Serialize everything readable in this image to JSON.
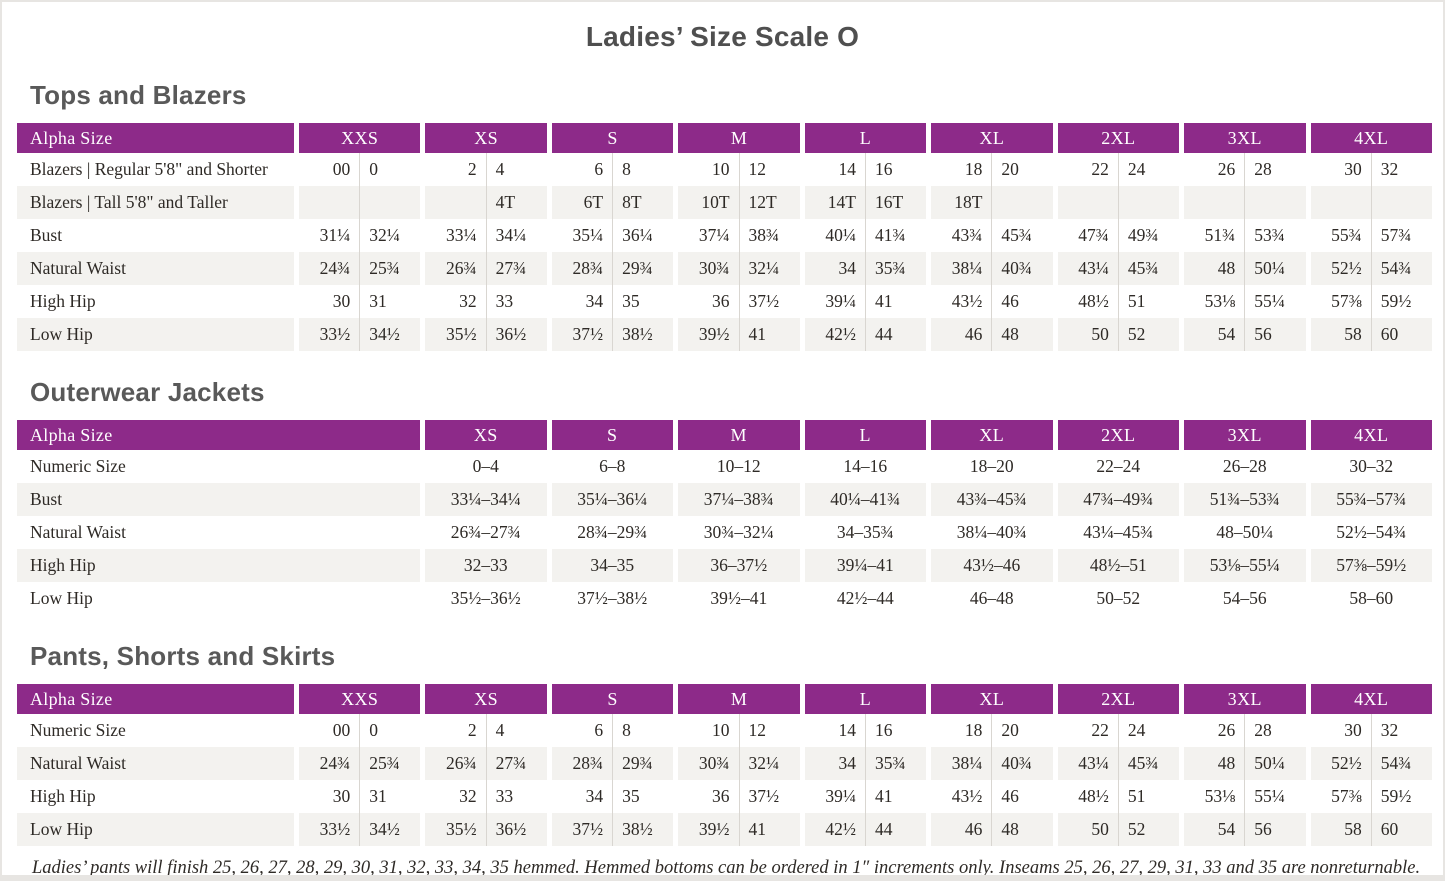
{
  "page": {
    "title": "Ladies’ Size Scale O",
    "footnote": "Ladies’ pants will finish 25, 26, 27, 28, 29, 30, 31, 32, 33, 34, 35 hemmed. Hemmed bottoms can be ordered in 1″ increments only. Inseams 25, 26, 27, 29, 31, 33 and 35 are nonreturnable."
  },
  "colors": {
    "accent": "#8d2a89",
    "stripe": "#f3f2ef",
    "heading_gray": "#595959"
  },
  "tables": [
    {
      "id": "tops-and-blazers",
      "section_title": "Tops and Blazers",
      "header_label": "Alpha Size",
      "columns_per_size": 2,
      "sizes": [
        "XXS",
        "XS",
        "S",
        "M",
        "L",
        "XL",
        "2XL",
        "3XL",
        "4XL"
      ],
      "rows": [
        {
          "label": "Blazers  |  Regular 5'8\" and Shorter",
          "values": [
            "00",
            "0",
            "2",
            "4",
            "6",
            "8",
            "10",
            "12",
            "14",
            "16",
            "18",
            "20",
            "22",
            "24",
            "26",
            "28",
            "30",
            "32"
          ]
        },
        {
          "label": "Blazers  |  Tall 5'8\" and Taller",
          "values": [
            "",
            "",
            "",
            "4T",
            "6T",
            "8T",
            "10T",
            "12T",
            "14T",
            "16T",
            "18T",
            "",
            "",
            "",
            "",
            "",
            "",
            ""
          ]
        },
        {
          "label": "Bust",
          "values": [
            "31¼",
            "32¼",
            "33¼",
            "34¼",
            "35¼",
            "36¼",
            "37¼",
            "38¾",
            "40¼",
            "41¾",
            "43¾",
            "45¾",
            "47¾",
            "49¾",
            "51¾",
            "53¾",
            "55¾",
            "57¾"
          ]
        },
        {
          "label": "Natural Waist",
          "values": [
            "24¾",
            "25¾",
            "26¾",
            "27¾",
            "28¾",
            "29¾",
            "30¾",
            "32¼",
            "34",
            "35¾",
            "38¼",
            "40¾",
            "43¼",
            "45¾",
            "48",
            "50¼",
            "52½",
            "54¾"
          ]
        },
        {
          "label": "High Hip",
          "values": [
            "30",
            "31",
            "32",
            "33",
            "34",
            "35",
            "36",
            "37½",
            "39¼",
            "41",
            "43½",
            "46",
            "48½",
            "51",
            "53⅛",
            "55¼",
            "57⅜",
            "59½"
          ]
        },
        {
          "label": "Low Hip",
          "values": [
            "33½",
            "34½",
            "35½",
            "36½",
            "37½",
            "38½",
            "39½",
            "41",
            "42½",
            "44",
            "46",
            "48",
            "50",
            "52",
            "54",
            "56",
            "58",
            "60"
          ]
        }
      ]
    },
    {
      "id": "outerwear-jackets",
      "section_title": "Outerwear Jackets",
      "header_label": "Alpha Size",
      "columns_per_size": 1,
      "sizes": [
        "XS",
        "S",
        "M",
        "L",
        "XL",
        "2XL",
        "3XL",
        "4XL"
      ],
      "rows": [
        {
          "label": "Numeric Size",
          "values": [
            "0–4",
            "6–8",
            "10–12",
            "14–16",
            "18–20",
            "22–24",
            "26–28",
            "30–32"
          ]
        },
        {
          "label": "Bust",
          "values": [
            "33¼–34¼",
            "35¼–36¼",
            "37¼–38¾",
            "40¼–41¾",
            "43¾–45¾",
            "47¾–49¾",
            "51¾–53¾",
            "55¾–57¾"
          ]
        },
        {
          "label": "Natural Waist",
          "values": [
            "26¾–27¾",
            "28¾–29¾",
            "30¾–32¼",
            "34–35¾",
            "38¼–40¾",
            "43¼–45¾",
            "48–50¼",
            "52½–54¾"
          ]
        },
        {
          "label": "High Hip",
          "values": [
            "32–33",
            "34–35",
            "36–37½",
            "39¼–41",
            "43½–46",
            "48½–51",
            "53⅛–55¼",
            "57⅜–59½"
          ]
        },
        {
          "label": "Low Hip",
          "values": [
            "35½–36½",
            "37½–38½",
            "39½–41",
            "42½–44",
            "46–48",
            "50–52",
            "54–56",
            "58–60"
          ]
        }
      ]
    },
    {
      "id": "pants-shorts-and-skirts",
      "section_title": "Pants, Shorts and Skirts",
      "header_label": "Alpha Size",
      "columns_per_size": 2,
      "sizes": [
        "XXS",
        "XS",
        "S",
        "M",
        "L",
        "XL",
        "2XL",
        "3XL",
        "4XL"
      ],
      "rows": [
        {
          "label": "Numeric Size",
          "values": [
            "00",
            "0",
            "2",
            "4",
            "6",
            "8",
            "10",
            "12",
            "14",
            "16",
            "18",
            "20",
            "22",
            "24",
            "26",
            "28",
            "30",
            "32"
          ]
        },
        {
          "label": "Natural Waist",
          "values": [
            "24¾",
            "25¾",
            "26¾",
            "27¾",
            "28¾",
            "29¾",
            "30¾",
            "32¼",
            "34",
            "35¾",
            "38¼",
            "40¾",
            "43¼",
            "45¾",
            "48",
            "50¼",
            "52½",
            "54¾"
          ]
        },
        {
          "label": "High Hip",
          "values": [
            "30",
            "31",
            "32",
            "33",
            "34",
            "35",
            "36",
            "37½",
            "39¼",
            "41",
            "43½",
            "46",
            "48½",
            "51",
            "53⅛",
            "55¼",
            "57⅜",
            "59½"
          ]
        },
        {
          "label": "Low Hip",
          "values": [
            "33½",
            "34½",
            "35½",
            "36½",
            "37½",
            "38½",
            "39½",
            "41",
            "42½",
            "44",
            "46",
            "48",
            "50",
            "52",
            "54",
            "56",
            "58",
            "60"
          ]
        }
      ]
    }
  ]
}
